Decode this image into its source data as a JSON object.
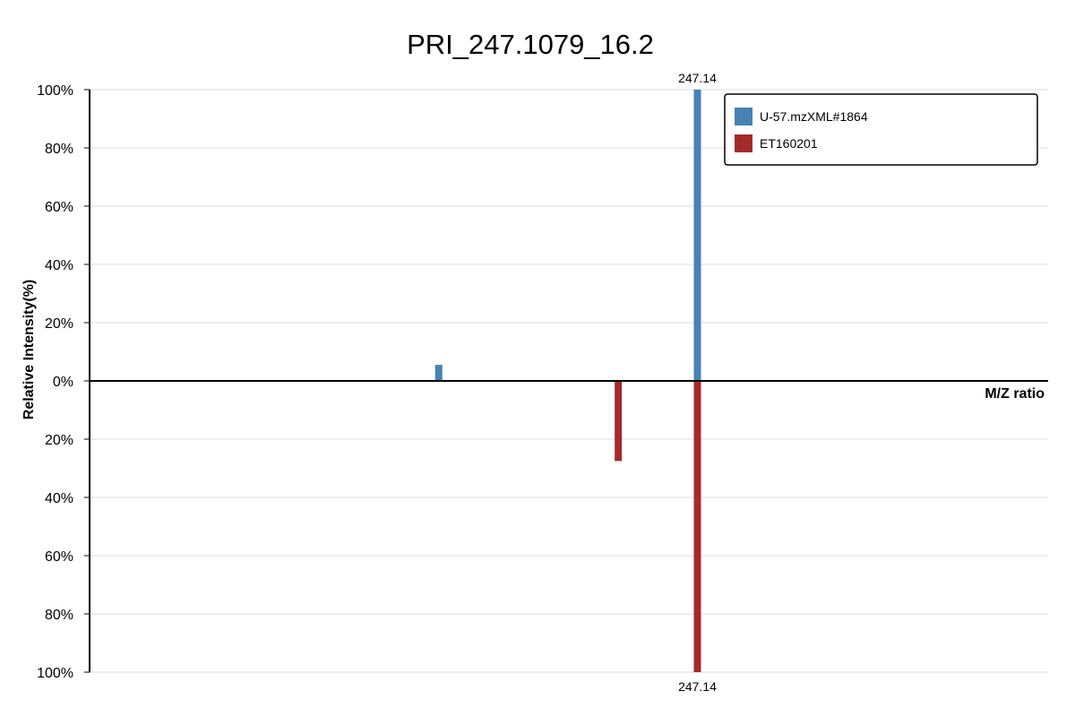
{
  "chart_data": {
    "type": "bar",
    "title": "PRI_247.1079_16.2",
    "xlabel": "M/Z ratio",
    "ylabel": "Relative Intensity(%)",
    "y_ticks_top": [
      "100%",
      "80%",
      "60%",
      "40%",
      "20%",
      "0%"
    ],
    "y_ticks_bottom": [
      "20%",
      "40%",
      "60%",
      "80%",
      "100%"
    ],
    "ylim_top": [
      0,
      100
    ],
    "ylim_bottom": [
      0,
      100
    ],
    "xlim": [
      69.4,
      349.7
    ],
    "grid": true,
    "legend_position": "top-right",
    "series": [
      {
        "name": "U-57.mzXML#1864",
        "color": "#4682b4",
        "direction": "up",
        "peaks": [
          {
            "x": 171.5,
            "y": 5.5
          },
          {
            "x": 247.14,
            "y": 100,
            "label": "247.14"
          }
        ]
      },
      {
        "name": "ET160201",
        "color": "#a52a2a",
        "direction": "down",
        "peaks": [
          {
            "x": 224.0,
            "y": 27.5
          },
          {
            "x": 247.14,
            "y": 100,
            "label": "247.14"
          }
        ]
      }
    ]
  }
}
